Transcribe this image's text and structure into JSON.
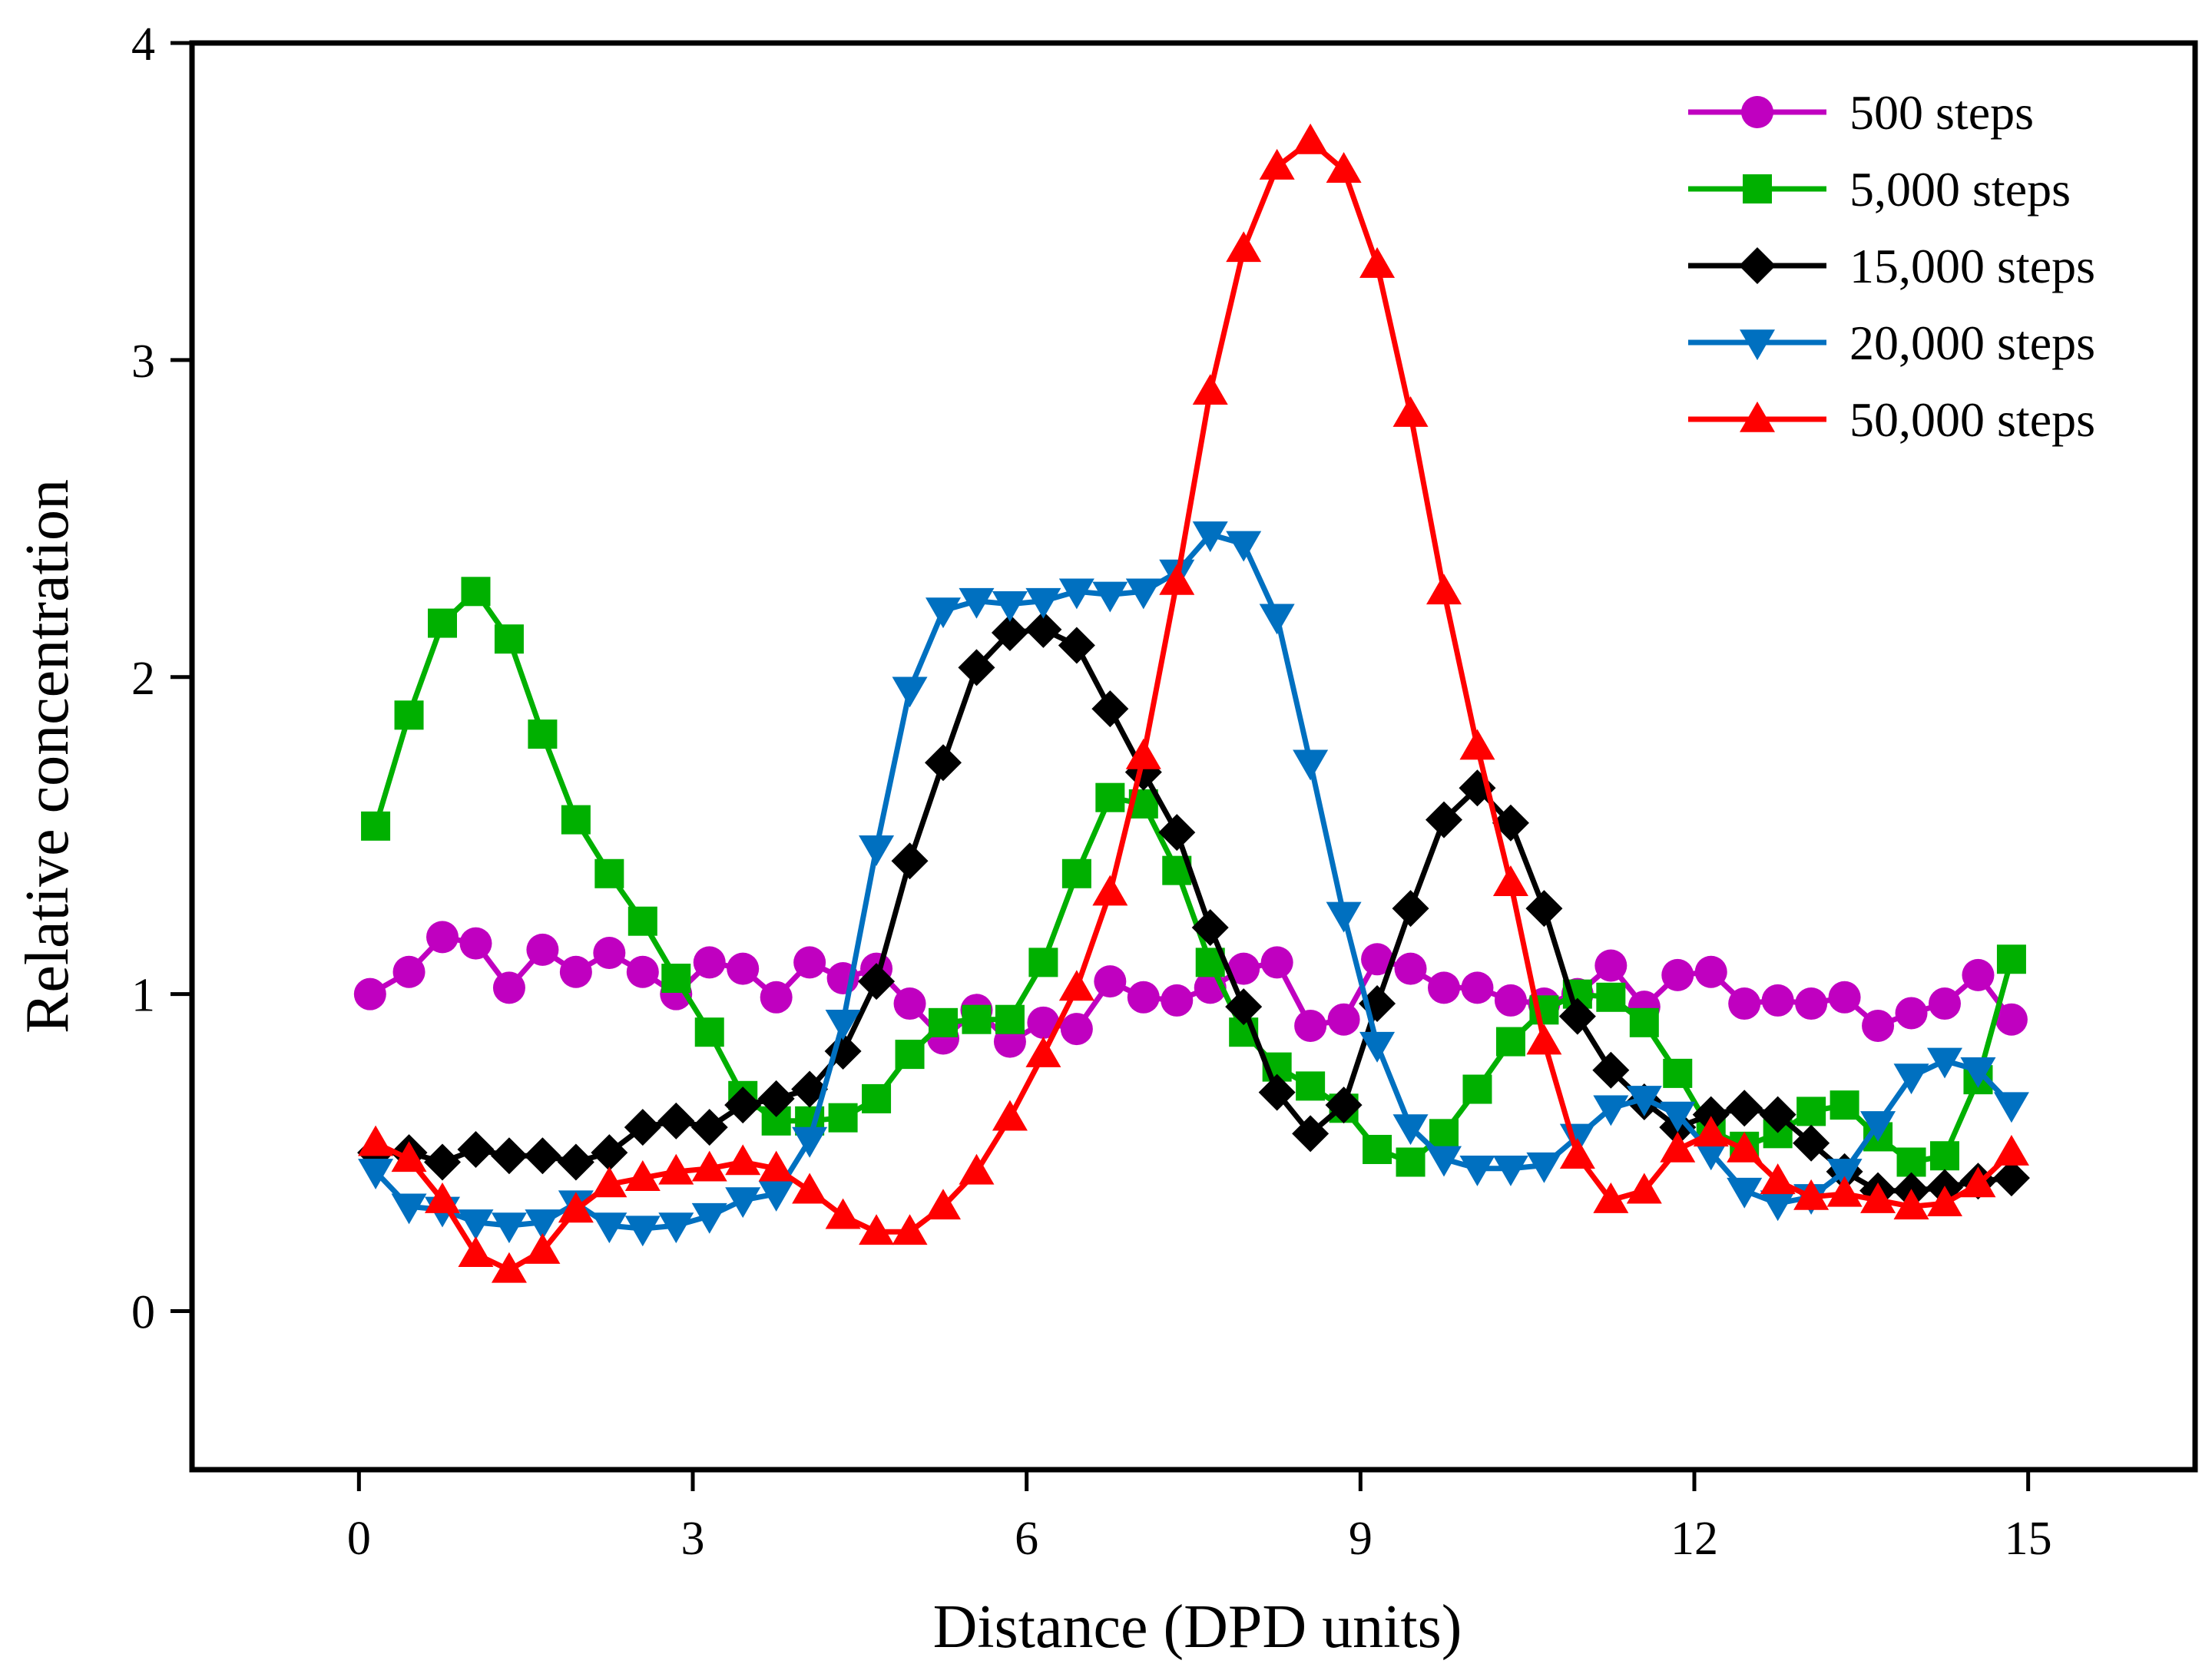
{
  "chart_data": {
    "type": "line",
    "title": "",
    "xlabel": "Distance (DPD units)",
    "ylabel": "Relative concentration",
    "xlim": [
      -1.5,
      16.5
    ],
    "ylim": [
      -0.5,
      4
    ],
    "xticks": [
      0,
      3,
      6,
      9,
      12,
      15
    ],
    "yticks": [
      0,
      1,
      2,
      3,
      4
    ],
    "grid": false,
    "legend_position": "top-right",
    "series": [
      {
        "name": "500 steps",
        "color": "#c000c0",
        "marker": "circle",
        "x": [
          0.1,
          0.45,
          0.75,
          1.05,
          1.35,
          1.65,
          1.95,
          2.25,
          2.55,
          2.85,
          3.15,
          3.45,
          3.75,
          4.05,
          4.35,
          4.65,
          4.95,
          5.25,
          5.55,
          5.85,
          6.15,
          6.45,
          6.75,
          7.05,
          7.35,
          7.65,
          7.95,
          8.25,
          8.55,
          8.85,
          9.15,
          9.45,
          9.75,
          10.05,
          10.35,
          10.65,
          10.95,
          11.25,
          11.55,
          11.85,
          12.15,
          12.45,
          12.75,
          13.05,
          13.35,
          13.65,
          13.95,
          14.25,
          14.55,
          14.85
        ],
        "y": [
          1.0,
          1.07,
          1.18,
          1.16,
          1.02,
          1.14,
          1.07,
          1.13,
          1.07,
          1.0,
          1.1,
          1.08,
          0.99,
          1.1,
          1.05,
          1.08,
          0.97,
          0.86,
          0.95,
          0.85,
          0.91,
          0.89,
          1.04,
          0.99,
          0.98,
          1.02,
          1.08,
          1.1,
          0.9,
          0.92,
          1.11,
          1.08,
          1.02,
          1.02,
          0.98,
          0.97,
          1.0,
          1.09,
          0.96,
          1.06,
          1.07,
          0.97,
          0.98,
          0.97,
          0.99,
          0.9,
          0.94,
          0.97,
          1.06,
          0.92
        ]
      },
      {
        "name": "5,000 steps",
        "color": "#00b000",
        "marker": "square",
        "x": [
          0.15,
          0.45,
          0.75,
          1.05,
          1.35,
          1.65,
          1.95,
          2.25,
          2.55,
          2.85,
          3.15,
          3.45,
          3.75,
          4.05,
          4.35,
          4.65,
          4.95,
          5.25,
          5.55,
          5.85,
          6.15,
          6.45,
          6.75,
          7.05,
          7.35,
          7.65,
          7.95,
          8.25,
          8.55,
          8.85,
          9.15,
          9.45,
          9.75,
          10.05,
          10.35,
          10.65,
          10.95,
          11.25,
          11.55,
          11.85,
          12.15,
          12.45,
          12.75,
          13.05,
          13.35,
          13.65,
          13.95,
          14.25,
          14.55,
          14.85
        ],
        "y": [
          1.53,
          1.88,
          2.17,
          2.27,
          2.12,
          1.82,
          1.55,
          1.38,
          1.23,
          1.05,
          0.88,
          0.68,
          0.6,
          0.6,
          0.61,
          0.67,
          0.81,
          0.91,
          0.92,
          0.92,
          1.1,
          1.38,
          1.62,
          1.6,
          1.39,
          1.1,
          0.88,
          0.77,
          0.71,
          0.64,
          0.51,
          0.47,
          0.56,
          0.7,
          0.85,
          0.95,
          1.0,
          0.99,
          0.91,
          0.75,
          0.57,
          0.52,
          0.56,
          0.63,
          0.65,
          0.55,
          0.47,
          0.49,
          0.73,
          1.11
        ]
      },
      {
        "name": "15,000 steps",
        "color": "#000000",
        "marker": "diamond",
        "x": [
          0.15,
          0.45,
          0.75,
          1.05,
          1.35,
          1.65,
          1.95,
          2.25,
          2.55,
          2.85,
          3.15,
          3.45,
          3.75,
          4.05,
          4.35,
          4.65,
          4.95,
          5.25,
          5.55,
          5.85,
          6.15,
          6.45,
          6.75,
          7.05,
          7.35,
          7.65,
          7.95,
          8.25,
          8.55,
          8.85,
          9.15,
          9.45,
          9.75,
          10.05,
          10.35,
          10.65,
          10.95,
          11.25,
          11.55,
          11.85,
          12.15,
          12.45,
          12.75,
          13.05,
          13.35,
          13.65,
          13.95,
          14.25,
          14.55,
          14.85
        ],
        "y": [
          0.5,
          0.5,
          0.47,
          0.51,
          0.49,
          0.49,
          0.47,
          0.5,
          0.58,
          0.6,
          0.58,
          0.65,
          0.67,
          0.7,
          0.82,
          1.04,
          1.42,
          1.73,
          2.03,
          2.14,
          2.15,
          2.1,
          1.9,
          1.7,
          1.51,
          1.21,
          0.96,
          0.69,
          0.56,
          0.65,
          0.97,
          1.27,
          1.55,
          1.65,
          1.54,
          1.27,
          0.93,
          0.76,
          0.66,
          0.58,
          0.62,
          0.64,
          0.62,
          0.53,
          0.44,
          0.38,
          0.38,
          0.39,
          0.41,
          0.42
        ]
      },
      {
        "name": "20,000 steps",
        "color": "#0070c0",
        "marker": "triangle-down",
        "x": [
          0.15,
          0.45,
          0.75,
          1.05,
          1.35,
          1.65,
          1.95,
          2.25,
          2.55,
          2.85,
          3.15,
          3.45,
          3.75,
          4.05,
          4.35,
          4.65,
          4.95,
          5.25,
          5.55,
          5.85,
          6.15,
          6.45,
          6.75,
          7.05,
          7.35,
          7.65,
          7.95,
          8.25,
          8.55,
          8.85,
          9.15,
          9.45,
          9.75,
          10.05,
          10.35,
          10.65,
          10.95,
          11.25,
          11.55,
          11.85,
          12.15,
          12.45,
          12.75,
          13.05,
          13.35,
          13.65,
          13.95,
          14.25,
          14.55,
          14.85
        ],
        "y": [
          0.44,
          0.33,
          0.32,
          0.28,
          0.27,
          0.28,
          0.34,
          0.27,
          0.26,
          0.27,
          0.3,
          0.35,
          0.37,
          0.54,
          0.91,
          1.46,
          1.96,
          2.21,
          2.24,
          2.23,
          2.24,
          2.27,
          2.26,
          2.27,
          2.33,
          2.45,
          2.42,
          2.19,
          1.73,
          1.25,
          0.84,
          0.58,
          0.48,
          0.45,
          0.45,
          0.46,
          0.55,
          0.64,
          0.67,
          0.62,
          0.5,
          0.38,
          0.34,
          0.36,
          0.44,
          0.59,
          0.74,
          0.79,
          0.76,
          0.65
        ]
      },
      {
        "name": "50,000 steps",
        "color": "#ff0000",
        "marker": "triangle-up",
        "x": [
          0.15,
          0.45,
          0.75,
          1.05,
          1.35,
          1.65,
          1.95,
          2.25,
          2.55,
          2.85,
          3.15,
          3.45,
          3.75,
          4.05,
          4.35,
          4.65,
          4.95,
          5.25,
          5.55,
          5.85,
          6.15,
          6.45,
          6.75,
          7.05,
          7.35,
          7.65,
          7.95,
          8.25,
          8.55,
          8.85,
          9.15,
          9.45,
          9.75,
          10.05,
          10.35,
          10.65,
          10.95,
          11.25,
          11.55,
          11.85,
          12.15,
          12.45,
          12.75,
          13.05,
          13.35,
          13.65,
          13.95,
          14.25,
          14.55,
          14.85
        ],
        "y": [
          0.53,
          0.48,
          0.35,
          0.18,
          0.13,
          0.19,
          0.32,
          0.4,
          0.42,
          0.44,
          0.45,
          0.47,
          0.45,
          0.38,
          0.3,
          0.25,
          0.25,
          0.33,
          0.44,
          0.61,
          0.81,
          1.02,
          1.32,
          1.75,
          2.3,
          2.9,
          3.35,
          3.61,
          3.69,
          3.6,
          3.3,
          2.83,
          2.27,
          1.78,
          1.35,
          0.85,
          0.49,
          0.35,
          0.38,
          0.51,
          0.56,
          0.51,
          0.41,
          0.36,
          0.37,
          0.35,
          0.33,
          0.34,
          0.4,
          0.5
        ]
      }
    ]
  }
}
